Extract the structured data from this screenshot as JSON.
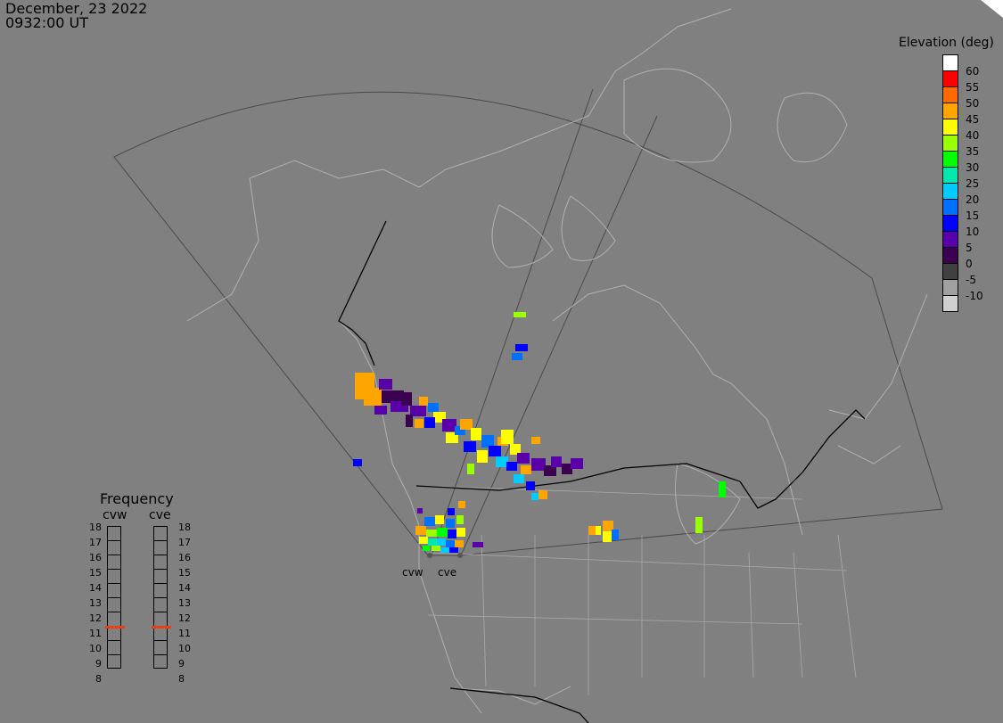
{
  "header": {
    "date": "December, 23 2022",
    "time": "0932:00 UT"
  },
  "radars": [
    {
      "name": "cvw"
    },
    {
      "name": "cve"
    }
  ],
  "colorbar": {
    "title": "Elevation (deg)",
    "levels": [
      {
        "label": "60",
        "color": "#ffffff"
      },
      {
        "label": "55",
        "color": "#ff0000"
      },
      {
        "label": "50",
        "color": "#ff6a00"
      },
      {
        "label": "45",
        "color": "#ffa500"
      },
      {
        "label": "40",
        "color": "#ffff00"
      },
      {
        "label": "35",
        "color": "#9aff00"
      },
      {
        "label": "30",
        "color": "#00ff00"
      },
      {
        "label": "25",
        "color": "#00e8b0"
      },
      {
        "label": "20",
        "color": "#00ccff"
      },
      {
        "label": "15",
        "color": "#0070ff"
      },
      {
        "label": "10",
        "color": "#0000ff"
      },
      {
        "label": "5",
        "color": "#5a00a8"
      },
      {
        "label": "0",
        "color": "#3c0050"
      },
      {
        "label": "-5",
        "color": "#404040"
      },
      {
        "label": "-10",
        "color": "#a0a0a0"
      },
      {
        "label": "",
        "color": "#d0d0d0"
      }
    ]
  },
  "frequency": {
    "title": "Frequency",
    "columns": [
      "cvw",
      "cve"
    ],
    "ticks": [
      "18",
      "17",
      "16",
      "15",
      "14",
      "13",
      "12",
      "11",
      "10",
      "9",
      "8"
    ],
    "cvw_mhz": 11,
    "cve_mhz": 11,
    "marker_color": "#e84010"
  }
}
